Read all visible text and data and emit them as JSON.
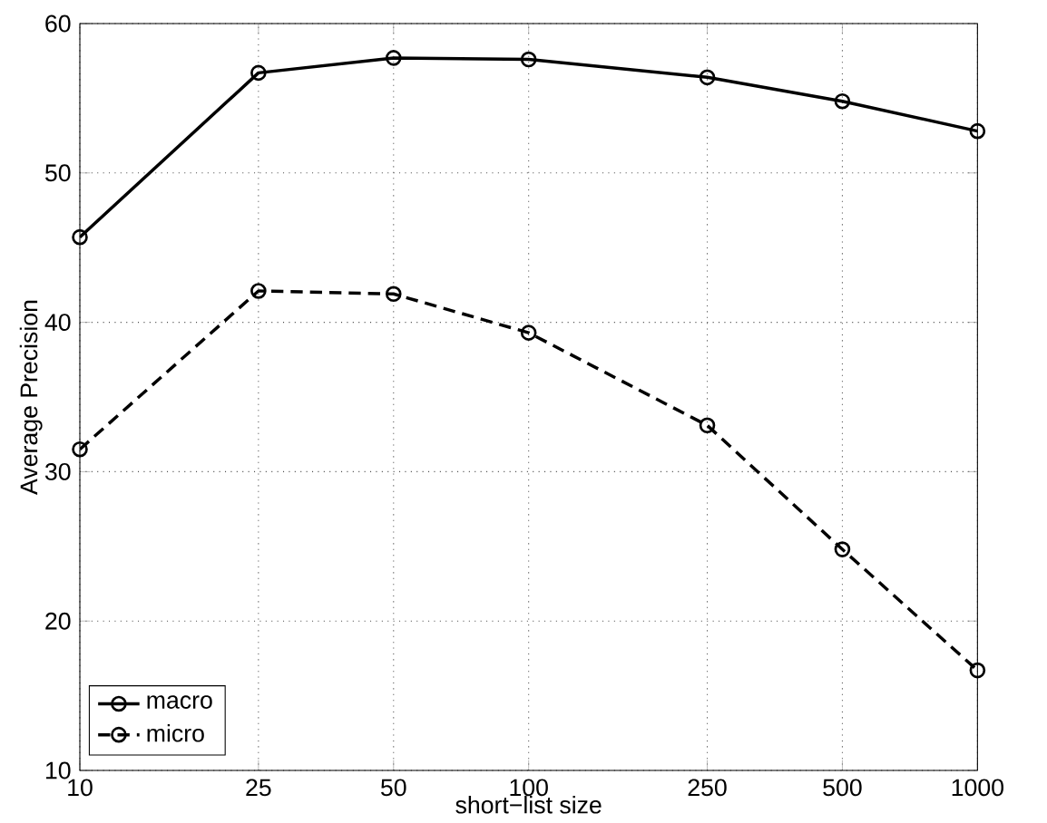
{
  "chart_data": {
    "type": "line",
    "xlabel": "short−list size",
    "ylabel": "Average Precision",
    "log": "x",
    "x": [
      10,
      25,
      50,
      100,
      250,
      500,
      1000
    ],
    "xlim": [
      10,
      1000
    ],
    "xticks": [
      10,
      25,
      50,
      100,
      250,
      500,
      1000
    ],
    "ylim": [
      10,
      60
    ],
    "yticks": [
      10,
      20,
      30,
      40,
      50,
      60
    ],
    "grid": true,
    "legend": "bottom left",
    "marker": "circle",
    "series": [
      {
        "name": "macro",
        "color": "#000000",
        "line_style": "solid",
        "values": [
          45.7,
          56.7,
          57.7,
          57.6,
          56.4,
          54.8,
          52.8
        ]
      },
      {
        "name": "micro",
        "color": "#000000",
        "line_style": "dashed",
        "values": [
          31.5,
          42.1,
          41.9,
          39.3,
          33.1,
          24.8,
          16.7
        ]
      }
    ]
  }
}
